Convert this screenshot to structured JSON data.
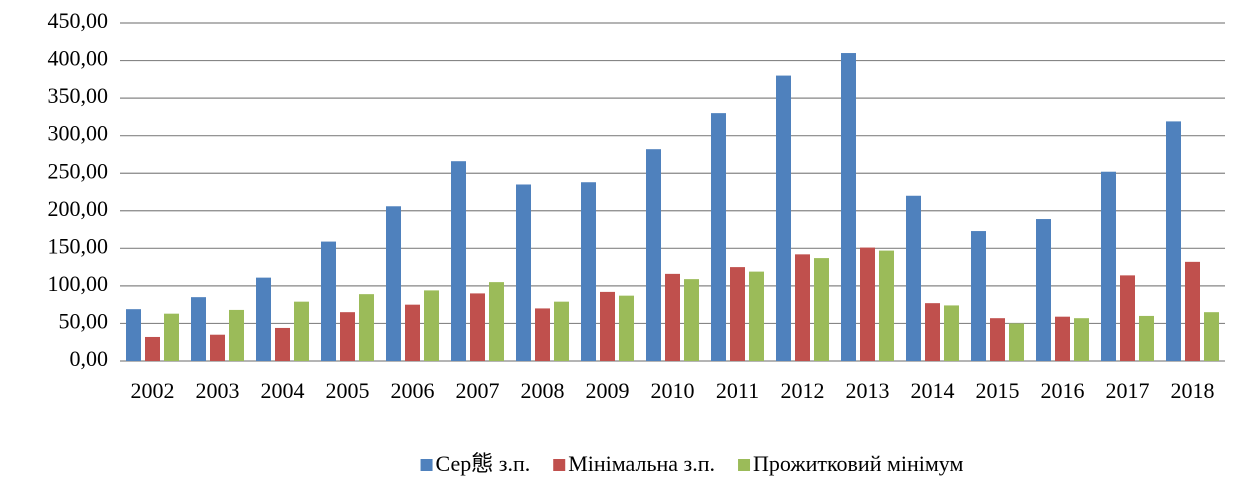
{
  "chart_data": {
    "type": "bar",
    "categories": [
      "2002",
      "2003",
      "2004",
      "2005",
      "2006",
      "2007",
      "2008",
      "2009",
      "2010",
      "2011",
      "2012",
      "2013",
      "2014",
      "2015",
      "2016",
      "2017",
      "2018"
    ],
    "series": [
      {
        "name": "Сер態 з.п.",
        "color": "#4f81bd",
        "values": [
          69,
          85,
          111,
          159,
          206,
          266,
          235,
          238,
          282,
          330,
          380,
          410,
          220,
          173,
          189,
          252,
          319
        ]
      },
      {
        "name": "Мінімальна  з.п.",
        "color": "#c0504d",
        "values": [
          32,
          35,
          44,
          65,
          75,
          90,
          70,
          92,
          116,
          125,
          142,
          151,
          77,
          57,
          59,
          114,
          132
        ]
      },
      {
        "name": "Прожитковий мінімум",
        "color": "#9bbb59",
        "values": [
          63,
          68,
          79,
          89,
          94,
          105,
          79,
          87,
          109,
          119,
          137,
          147,
          74,
          50,
          57,
          60,
          65
        ]
      }
    ],
    "ylim": [
      0,
      450
    ],
    "yticks": [
      {
        "value": 0,
        "label": "0,00"
      },
      {
        "value": 50,
        "label": "50,00"
      },
      {
        "value": 100,
        "label": "100,00"
      },
      {
        "value": 150,
        "label": "150,00"
      },
      {
        "value": 200,
        "label": "200,00"
      },
      {
        "value": 250,
        "label": "250,00"
      },
      {
        "value": 300,
        "label": "300,00"
      },
      {
        "value": 350,
        "label": "350,00"
      },
      {
        "value": 400,
        "label": "400,00"
      },
      {
        "value": 450,
        "label": "450,00"
      }
    ],
    "grid": true,
    "legend": "bottom"
  }
}
